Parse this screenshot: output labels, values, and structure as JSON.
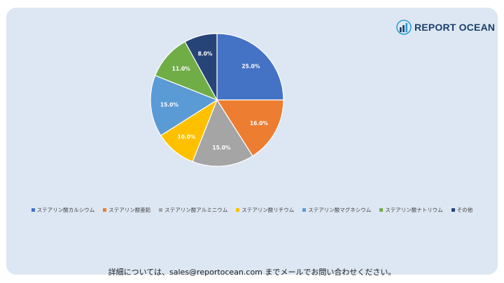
{
  "brand": {
    "name": "REPORT OCEAN"
  },
  "chart_data": {
    "type": "pie",
    "categories": [
      "ステアリン酸カルシウム",
      "ステアリン酸亜鉛",
      "ステアリン酸アルミニウム",
      "ステアリン酸リチウム",
      "ステアリン酸マグネシウム",
      "ステアリン酸ナトリウム",
      "その他"
    ],
    "values": [
      25.0,
      16.0,
      15.0,
      10.0,
      15.0,
      11.0,
      8.0
    ],
    "labels": [
      "25.0%",
      "16.0%",
      "15.0%",
      "10.0%",
      "15.0%",
      "11.0%",
      "8.0%"
    ],
    "colors": [
      "#4472c4",
      "#ed7d31",
      "#a5a5a5",
      "#ffc000",
      "#5b9bd5",
      "#70ad47",
      "#264478"
    ],
    "legend_position": "bottom",
    "start_angle": "12 o'clock, clockwise"
  },
  "footer": {
    "text": "詳細については、sales@reportocean.com までメールでお問い合わせください。"
  }
}
